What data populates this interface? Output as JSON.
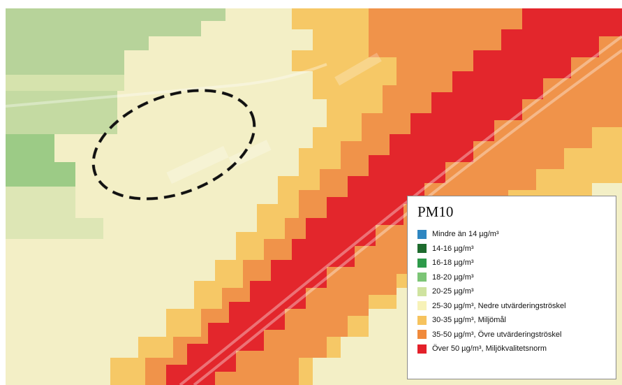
{
  "legend": {
    "title": "PM10",
    "items": [
      {
        "label": "Mindre än 14 µg/m³",
        "color": "#2e86c1"
      },
      {
        "label": "14-16 µg/m³",
        "color": "#1e6b2e"
      },
      {
        "label": "16-18 µg/m³",
        "color": "#2e9a4a"
      },
      {
        "label": "18-20 µg/m³",
        "color": "#7cc576"
      },
      {
        "label": "20-25 µg/m³",
        "color": "#cfe3a0"
      },
      {
        "label": "25-30 µg/m³, Nedre utvärderingströskel",
        "color": "#f7f2b8"
      },
      {
        "label": "30-35 µg/m³, Miljömål",
        "color": "#f6c35e"
      },
      {
        "label": "35-50 µg/m³, Övre utvärderingströskel",
        "color": "#f08a3c"
      },
      {
        "label": "Över 50 µg/m³, Miljökvalitetsnorm",
        "color": "#e3202a"
      }
    ]
  },
  "map": {
    "highlight_marker": "dashed-ellipse"
  }
}
